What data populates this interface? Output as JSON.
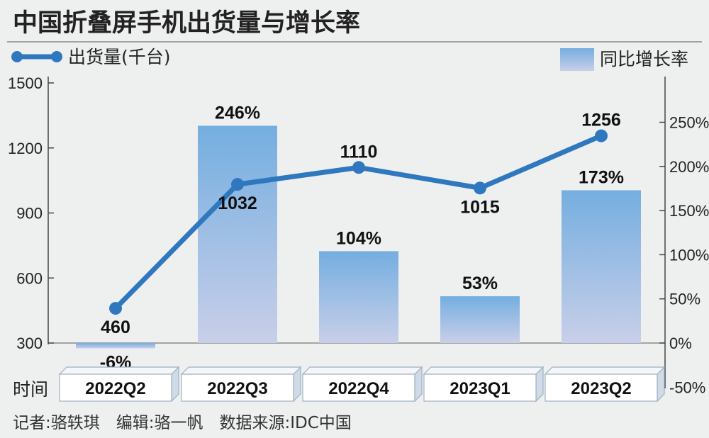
{
  "chart_data": {
    "type": "bar",
    "title": "中国折叠屏手机出货量与增长率",
    "categories": [
      "2022Q2",
      "2022Q3",
      "2022Q4",
      "2023Q1",
      "2023Q2"
    ],
    "series": [
      {
        "name": "出货量(千台)",
        "type": "line",
        "axis": "left",
        "values": [
          460,
          1032,
          1110,
          1015,
          1256
        ],
        "labels": [
          "460",
          "1032",
          "1110",
          "1015",
          "1256"
        ],
        "color": "#2f78bf"
      },
      {
        "name": "同比增长率",
        "type": "bar",
        "axis": "right",
        "values": [
          -6,
          246,
          104,
          53,
          173
        ],
        "labels": [
          "-6%",
          "246%",
          "104%",
          "53%",
          "173%"
        ],
        "color_top": "#74aee0",
        "color_bottom": "#c9cfe9"
      }
    ],
    "y_left": {
      "ylim": [
        300,
        1500
      ],
      "ticks": [
        "300",
        "600",
        "900",
        "1200",
        "1500"
      ]
    },
    "y_right": {
      "ylim": [
        -50,
        300
      ],
      "ticks": [
        "-50%",
        "0%",
        "50%",
        "100%",
        "150%",
        "200%",
        "250%"
      ]
    },
    "xlabel": "时间",
    "legend": "top"
  },
  "footer": "记者:骆轶琪　编辑:骆一帆　数据来源:IDC中国"
}
